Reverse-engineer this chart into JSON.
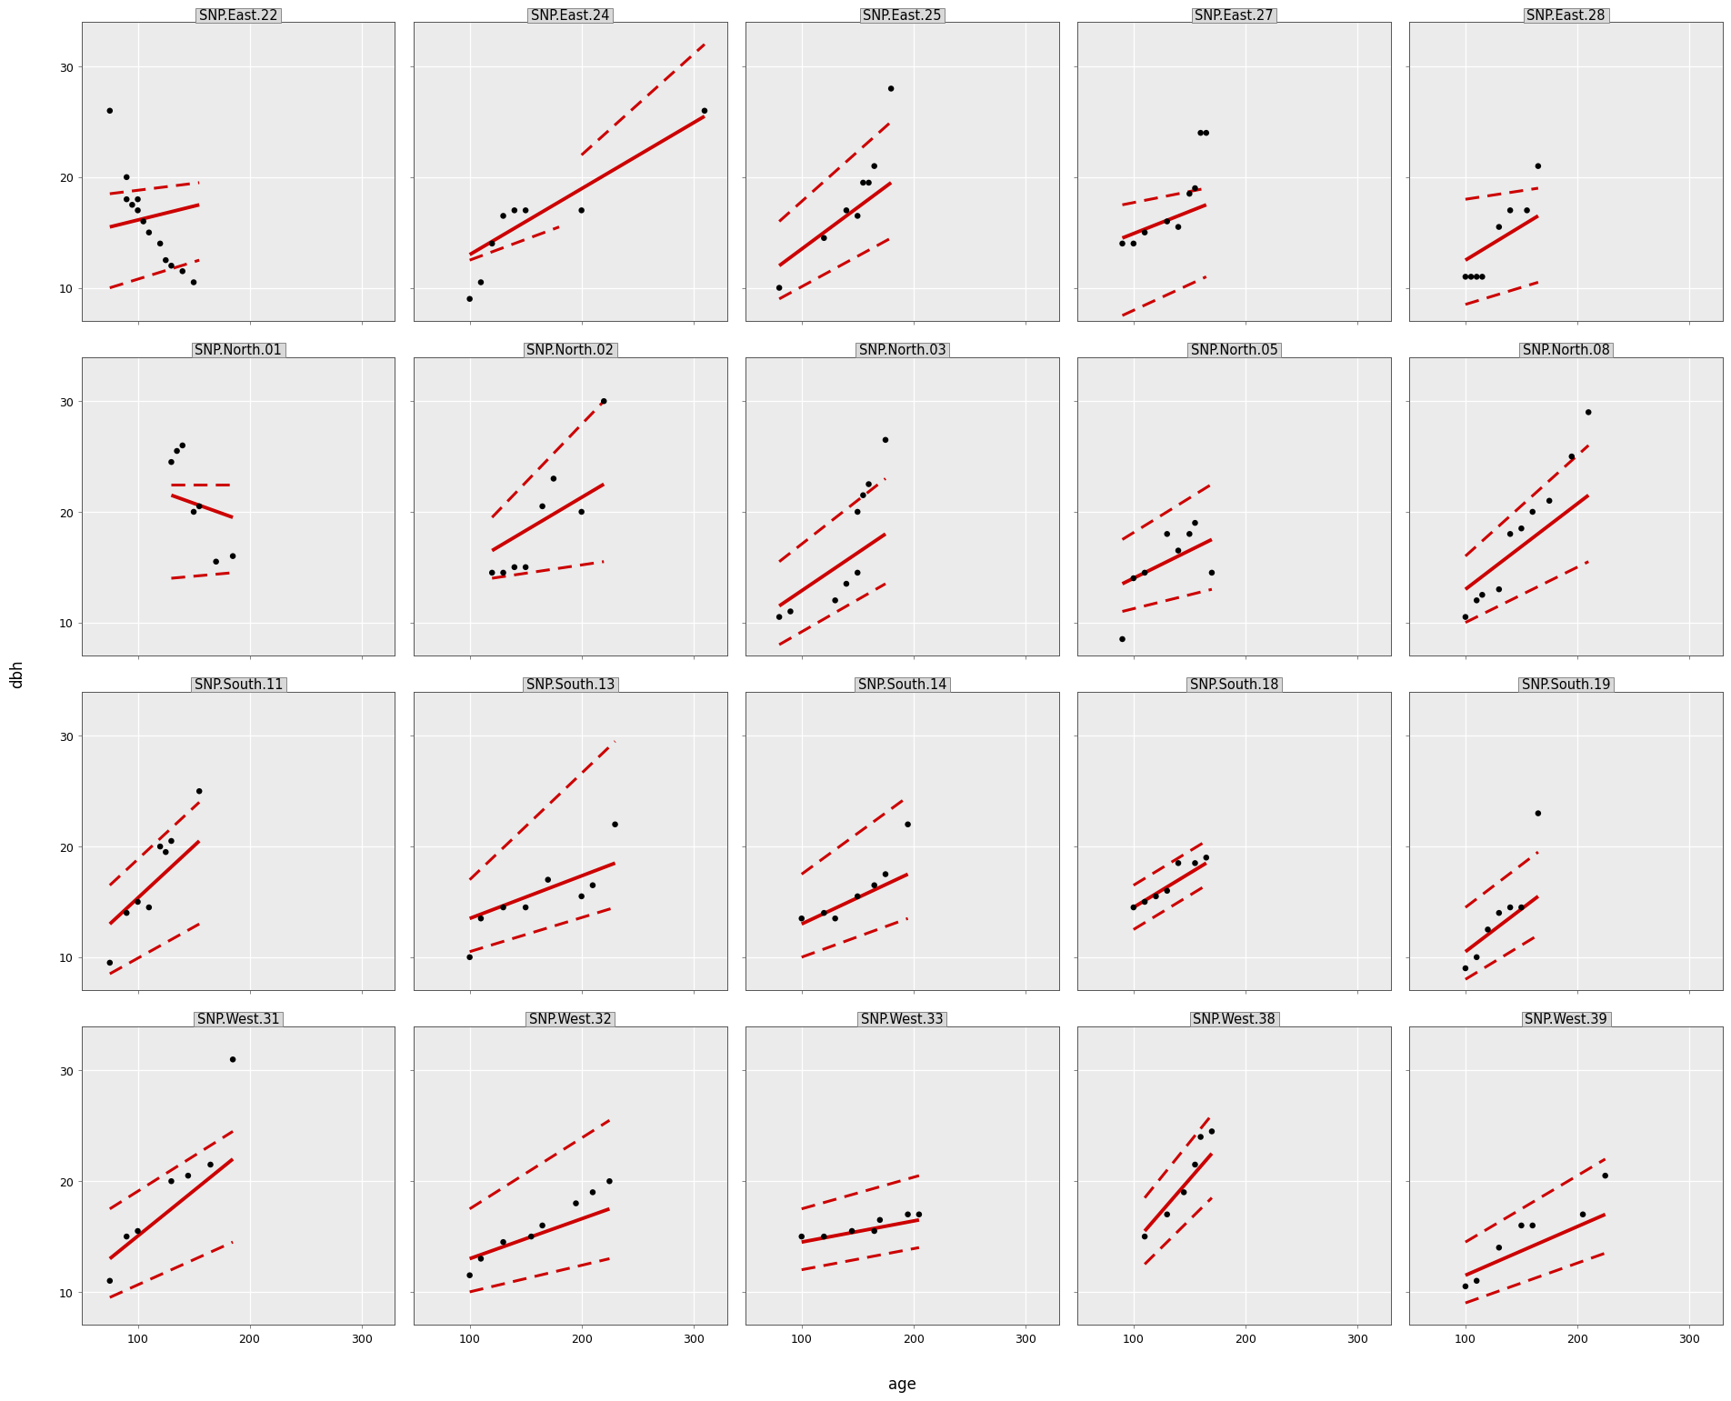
{
  "panels": [
    {
      "title": "SNP.East.22",
      "points": [
        [
          75,
          26
        ],
        [
          90,
          20
        ],
        [
          90,
          18
        ],
        [
          95,
          17.5
        ],
        [
          100,
          17
        ],
        [
          100,
          18
        ],
        [
          105,
          16
        ],
        [
          110,
          15
        ],
        [
          120,
          14
        ],
        [
          125,
          12.5
        ],
        [
          130,
          12
        ],
        [
          140,
          11.5
        ],
        [
          150,
          10.5
        ]
      ],
      "line": [
        [
          75,
          15.5
        ],
        [
          155,
          17.5
        ]
      ],
      "ci_lower": [
        [
          75,
          10.0
        ],
        [
          155,
          12.5
        ]
      ],
      "ci_upper": [
        [
          75,
          18.5
        ],
        [
          155,
          19.5
        ]
      ]
    },
    {
      "title": "SNP.East.24",
      "points": [
        [
          100,
          9
        ],
        [
          110,
          10.5
        ],
        [
          120,
          14
        ],
        [
          130,
          16.5
        ],
        [
          140,
          17
        ],
        [
          150,
          17
        ],
        [
          200,
          17
        ],
        [
          310,
          26
        ]
      ],
      "line": [
        [
          100,
          13.0
        ],
        [
          310,
          25.5
        ]
      ],
      "ci_lower": [
        [
          100,
          12.5
        ],
        [
          180,
          15.5
        ]
      ],
      "ci_upper": [
        [
          200,
          22.0
        ],
        [
          310,
          32.0
        ]
      ]
    },
    {
      "title": "SNP.East.25",
      "points": [
        [
          80,
          10
        ],
        [
          120,
          14.5
        ],
        [
          140,
          17
        ],
        [
          150,
          16.5
        ],
        [
          155,
          19.5
        ],
        [
          160,
          19.5
        ],
        [
          165,
          21
        ],
        [
          180,
          28
        ]
      ],
      "line": [
        [
          80,
          12.0
        ],
        [
          180,
          19.5
        ]
      ],
      "ci_lower": [
        [
          80,
          9.0
        ],
        [
          180,
          14.5
        ]
      ],
      "ci_upper": [
        [
          80,
          16.0
        ],
        [
          180,
          25.0
        ]
      ]
    },
    {
      "title": "SNP.East.27",
      "points": [
        [
          90,
          14
        ],
        [
          100,
          14
        ],
        [
          110,
          15
        ],
        [
          130,
          16
        ],
        [
          140,
          15.5
        ],
        [
          150,
          18.5
        ],
        [
          155,
          19
        ],
        [
          160,
          24
        ],
        [
          165,
          24
        ]
      ],
      "line": [
        [
          90,
          14.5
        ],
        [
          165,
          17.5
        ]
      ],
      "ci_lower": [
        [
          90,
          7.5
        ],
        [
          165,
          11.0
        ]
      ],
      "ci_upper": [
        [
          90,
          17.5
        ],
        [
          165,
          19.0
        ]
      ]
    },
    {
      "title": "SNP.East.28",
      "points": [
        [
          100,
          11
        ],
        [
          105,
          11
        ],
        [
          110,
          11
        ],
        [
          115,
          11
        ],
        [
          130,
          15.5
        ],
        [
          140,
          17
        ],
        [
          155,
          17
        ],
        [
          165,
          21
        ]
      ],
      "line": [
        [
          100,
          12.5
        ],
        [
          165,
          16.5
        ]
      ],
      "ci_lower": [
        [
          100,
          8.5
        ],
        [
          165,
          10.5
        ]
      ],
      "ci_upper": [
        [
          100,
          18.0
        ],
        [
          165,
          19.0
        ]
      ]
    },
    {
      "title": "SNP.North.01",
      "points": [
        [
          130,
          24.5
        ],
        [
          135,
          25.5
        ],
        [
          140,
          26
        ],
        [
          150,
          20
        ],
        [
          155,
          20.5
        ],
        [
          170,
          15.5
        ],
        [
          185,
          16
        ]
      ],
      "line": [
        [
          130,
          21.5
        ],
        [
          185,
          19.5
        ]
      ],
      "ci_lower": [
        [
          130,
          14.0
        ],
        [
          185,
          14.5
        ]
      ],
      "ci_upper": [
        [
          130,
          22.5
        ],
        [
          185,
          22.5
        ]
      ]
    },
    {
      "title": "SNP.North.02",
      "points": [
        [
          120,
          14.5
        ],
        [
          130,
          14.5
        ],
        [
          140,
          15
        ],
        [
          150,
          15.0
        ],
        [
          165,
          20.5
        ],
        [
          175,
          23
        ],
        [
          200,
          20
        ],
        [
          220,
          30
        ]
      ],
      "line": [
        [
          120,
          16.5
        ],
        [
          220,
          22.5
        ]
      ],
      "ci_lower": [
        [
          120,
          14.0
        ],
        [
          220,
          15.5
        ]
      ],
      "ci_upper": [
        [
          120,
          19.5
        ],
        [
          220,
          30.0
        ]
      ]
    },
    {
      "title": "SNP.North.03",
      "points": [
        [
          80,
          10.5
        ],
        [
          90,
          11
        ],
        [
          130,
          12
        ],
        [
          140,
          13.5
        ],
        [
          150,
          14.5
        ],
        [
          150,
          20
        ],
        [
          155,
          21.5
        ],
        [
          160,
          22.5
        ],
        [
          175,
          26.5
        ]
      ],
      "line": [
        [
          80,
          11.5
        ],
        [
          175,
          18.0
        ]
      ],
      "ci_lower": [
        [
          80,
          8.0
        ],
        [
          175,
          13.5
        ]
      ],
      "ci_upper": [
        [
          80,
          15.5
        ],
        [
          175,
          23.0
        ]
      ]
    },
    {
      "title": "SNP.North.05",
      "points": [
        [
          90,
          8.5
        ],
        [
          100,
          14
        ],
        [
          110,
          14.5
        ],
        [
          130,
          18
        ],
        [
          140,
          16.5
        ],
        [
          150,
          18
        ],
        [
          155,
          19
        ],
        [
          170,
          14.5
        ]
      ],
      "line": [
        [
          90,
          13.5
        ],
        [
          170,
          17.5
        ]
      ],
      "ci_lower": [
        [
          90,
          11.0
        ],
        [
          170,
          13.0
        ]
      ],
      "ci_upper": [
        [
          90,
          17.5
        ],
        [
          170,
          22.5
        ]
      ]
    },
    {
      "title": "SNP.North.08",
      "points": [
        [
          100,
          10.5
        ],
        [
          110,
          12
        ],
        [
          115,
          12.5
        ],
        [
          130,
          13
        ],
        [
          140,
          18
        ],
        [
          150,
          18.5
        ],
        [
          160,
          20
        ],
        [
          175,
          21
        ],
        [
          195,
          25
        ],
        [
          210,
          29
        ]
      ],
      "line": [
        [
          100,
          13.0
        ],
        [
          210,
          21.5
        ]
      ],
      "ci_lower": [
        [
          100,
          10.0
        ],
        [
          210,
          15.5
        ]
      ],
      "ci_upper": [
        [
          100,
          16.0
        ],
        [
          210,
          26.0
        ]
      ]
    },
    {
      "title": "SNP.South.11",
      "points": [
        [
          75,
          9.5
        ],
        [
          90,
          14
        ],
        [
          100,
          15
        ],
        [
          110,
          14.5
        ],
        [
          120,
          20
        ],
        [
          125,
          19.5
        ],
        [
          130,
          20.5
        ],
        [
          155,
          25
        ]
      ],
      "line": [
        [
          75,
          13.0
        ],
        [
          155,
          20.5
        ]
      ],
      "ci_lower": [
        [
          75,
          8.5
        ],
        [
          155,
          13.0
        ]
      ],
      "ci_upper": [
        [
          75,
          16.5
        ],
        [
          155,
          24.0
        ]
      ]
    },
    {
      "title": "SNP.South.13",
      "points": [
        [
          100,
          10.0
        ],
        [
          110,
          13.5
        ],
        [
          130,
          14.5
        ],
        [
          150,
          14.5
        ],
        [
          170,
          17.0
        ],
        [
          200,
          15.5
        ],
        [
          210,
          16.5
        ],
        [
          230,
          22
        ]
      ],
      "line": [
        [
          100,
          13.5
        ],
        [
          230,
          18.5
        ]
      ],
      "ci_lower": [
        [
          100,
          10.5
        ],
        [
          230,
          14.5
        ]
      ],
      "ci_upper": [
        [
          100,
          17.0
        ],
        [
          230,
          29.5
        ]
      ]
    },
    {
      "title": "SNP.South.14",
      "points": [
        [
          100,
          13.5
        ],
        [
          120,
          14
        ],
        [
          130,
          13.5
        ],
        [
          150,
          15.5
        ],
        [
          165,
          16.5
        ],
        [
          175,
          17.5
        ],
        [
          195,
          22
        ]
      ],
      "line": [
        [
          100,
          13.0
        ],
        [
          195,
          17.5
        ]
      ],
      "ci_lower": [
        [
          100,
          10.0
        ],
        [
          195,
          13.5
        ]
      ],
      "ci_upper": [
        [
          100,
          17.5
        ],
        [
          195,
          24.5
        ]
      ]
    },
    {
      "title": "SNP.South.18",
      "points": [
        [
          100,
          14.5
        ],
        [
          110,
          15
        ],
        [
          120,
          15.5
        ],
        [
          130,
          16
        ],
        [
          140,
          18.5
        ],
        [
          155,
          18.5
        ],
        [
          165,
          19
        ]
      ],
      "line": [
        [
          100,
          14.5
        ],
        [
          165,
          18.5
        ]
      ],
      "ci_lower": [
        [
          100,
          12.5
        ],
        [
          165,
          16.5
        ]
      ],
      "ci_upper": [
        [
          100,
          16.5
        ],
        [
          165,
          20.5
        ]
      ]
    },
    {
      "title": "SNP.South.19",
      "points": [
        [
          100,
          9
        ],
        [
          110,
          10
        ],
        [
          120,
          12.5
        ],
        [
          130,
          14
        ],
        [
          140,
          14.5
        ],
        [
          150,
          14.5
        ],
        [
          165,
          23
        ]
      ],
      "line": [
        [
          100,
          10.5
        ],
        [
          165,
          15.5
        ]
      ],
      "ci_lower": [
        [
          100,
          8.0
        ],
        [
          165,
          12.0
        ]
      ],
      "ci_upper": [
        [
          100,
          14.5
        ],
        [
          165,
          19.5
        ]
      ]
    },
    {
      "title": "SNP.West.31",
      "points": [
        [
          75,
          11
        ],
        [
          90,
          15
        ],
        [
          100,
          15.5
        ],
        [
          130,
          20
        ],
        [
          145,
          20.5
        ],
        [
          165,
          21.5
        ],
        [
          185,
          31
        ]
      ],
      "line": [
        [
          75,
          13.0
        ],
        [
          185,
          22.0
        ]
      ],
      "ci_lower": [
        [
          75,
          9.5
        ],
        [
          185,
          14.5
        ]
      ],
      "ci_upper": [
        [
          75,
          17.5
        ],
        [
          185,
          24.5
        ]
      ]
    },
    {
      "title": "SNP.West.32",
      "points": [
        [
          100,
          11.5
        ],
        [
          110,
          13
        ],
        [
          130,
          14.5
        ],
        [
          155,
          15.0
        ],
        [
          165,
          16.0
        ],
        [
          195,
          18
        ],
        [
          210,
          19
        ],
        [
          225,
          20
        ]
      ],
      "line": [
        [
          100,
          13.0
        ],
        [
          225,
          17.5
        ]
      ],
      "ci_lower": [
        [
          100,
          10.0
        ],
        [
          225,
          13.0
        ]
      ],
      "ci_upper": [
        [
          100,
          17.5
        ],
        [
          225,
          25.5
        ]
      ]
    },
    {
      "title": "SNP.West.33",
      "points": [
        [
          100,
          15
        ],
        [
          120,
          15
        ],
        [
          145,
          15.5
        ],
        [
          165,
          15.5
        ],
        [
          170,
          16.5
        ],
        [
          195,
          17
        ],
        [
          205,
          17
        ]
      ],
      "line": [
        [
          100,
          14.5
        ],
        [
          205,
          16.5
        ]
      ],
      "ci_lower": [
        [
          100,
          12.0
        ],
        [
          205,
          14.0
        ]
      ],
      "ci_upper": [
        [
          100,
          17.5
        ],
        [
          205,
          20.5
        ]
      ]
    },
    {
      "title": "SNP.West.38",
      "points": [
        [
          110,
          15
        ],
        [
          130,
          17
        ],
        [
          145,
          19
        ],
        [
          155,
          21.5
        ],
        [
          160,
          24
        ],
        [
          170,
          24.5
        ]
      ],
      "line": [
        [
          110,
          15.5
        ],
        [
          170,
          22.5
        ]
      ],
      "ci_lower": [
        [
          110,
          12.5
        ],
        [
          170,
          18.5
        ]
      ],
      "ci_upper": [
        [
          110,
          18.5
        ],
        [
          170,
          26.0
        ]
      ]
    },
    {
      "title": "SNP.West.39",
      "points": [
        [
          100,
          10.5
        ],
        [
          110,
          11
        ],
        [
          130,
          14
        ],
        [
          150,
          16
        ],
        [
          160,
          16
        ],
        [
          205,
          17
        ],
        [
          225,
          20.5
        ]
      ],
      "line": [
        [
          100,
          11.5
        ],
        [
          225,
          17.0
        ]
      ],
      "ci_lower": [
        [
          100,
          9.0
        ],
        [
          225,
          13.5
        ]
      ],
      "ci_upper": [
        [
          100,
          14.5
        ],
        [
          225,
          22.0
        ]
      ]
    }
  ],
  "xlim": [
    50,
    330
  ],
  "ylim": [
    7,
    34
  ],
  "xticks": [
    100,
    200,
    300
  ],
  "yticks": [
    10,
    20,
    30
  ],
  "xlabel": "age",
  "ylabel": "dbh",
  "line_color": "#CC0000",
  "ci_color": "#CC0000",
  "point_color": "#000000",
  "background_color": "#FFFFFF",
  "panel_bg": "#FFFFFF",
  "strip_bg": "#D9D9D9",
  "grid_color": "#C8C8C8",
  "border_color": "#888888",
  "title_fontsize": 10.5,
  "axis_label_fontsize": 12,
  "tick_fontsize": 9,
  "line_width": 2.8,
  "ci_linewidth": 2.2,
  "point_size": 22,
  "nrows": 4,
  "ncols": 5
}
